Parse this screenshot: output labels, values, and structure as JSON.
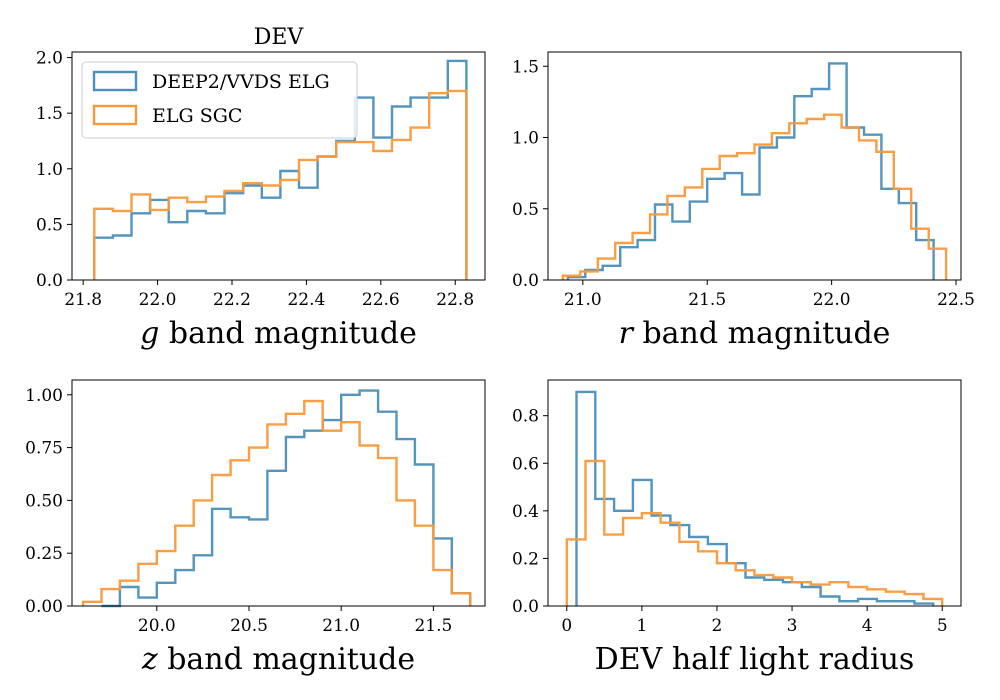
{
  "figure_title": "DEV",
  "colors": {
    "series_a": "#4b8fbb",
    "series_b": "#f9993a"
  },
  "legend": {
    "entries": [
      "DEEP2/VVDS ELG",
      "ELG SGC"
    ],
    "placement": "top-left of first panel"
  },
  "chart_data": [
    {
      "type": "histogram-step",
      "title": "DEV",
      "xlabel": "g band magnitude",
      "xlabel_math": "g",
      "xlabel_rest": " band magnitude",
      "xlim": [
        21.77,
        22.88
      ],
      "ylim": [
        0,
        2.05
      ],
      "xticks": [
        21.8,
        22.0,
        22.2,
        22.4,
        22.6,
        22.8
      ],
      "xtick_labels": [
        "21.8",
        "22.0",
        "22.2",
        "22.4",
        "22.6",
        "22.8"
      ],
      "yticks": [
        0,
        0.5,
        1.0,
        1.5,
        2.0
      ],
      "ytick_labels": [
        "0.0",
        "0.5",
        "1.0",
        "1.5",
        "2.0"
      ],
      "series": [
        {
          "name": "DEEP2/VVDS ELG",
          "edges": [
            21.83,
            21.88,
            21.93,
            21.98,
            22.03,
            22.08,
            22.13,
            22.18,
            22.23,
            22.28,
            22.33,
            22.38,
            22.43,
            22.48,
            22.53,
            22.58,
            22.63,
            22.68,
            22.73,
            22.78,
            22.83
          ],
          "values": [
            0.38,
            0.4,
            0.6,
            0.72,
            0.52,
            0.62,
            0.6,
            0.78,
            0.85,
            0.74,
            0.98,
            0.83,
            1.11,
            1.25,
            1.64,
            1.28,
            1.56,
            1.64,
            1.64,
            1.97
          ]
        },
        {
          "name": "ELG SGC",
          "edges": [
            21.83,
            21.88,
            21.93,
            21.98,
            22.03,
            22.08,
            22.13,
            22.18,
            22.23,
            22.28,
            22.33,
            22.38,
            22.43,
            22.48,
            22.53,
            22.58,
            22.63,
            22.68,
            22.73,
            22.78,
            22.83
          ],
          "values": [
            0.64,
            0.62,
            0.77,
            0.63,
            0.74,
            0.7,
            0.75,
            0.8,
            0.87,
            0.85,
            0.9,
            1.08,
            1.11,
            1.24,
            1.24,
            1.16,
            1.26,
            1.37,
            1.68,
            1.7
          ]
        }
      ]
    },
    {
      "type": "histogram-step",
      "title": "",
      "xlabel": "r band magnitude",
      "xlabel_math": "r",
      "xlabel_rest": " band magnitude",
      "xlim": [
        20.86,
        22.52
      ],
      "ylim": [
        0,
        1.6
      ],
      "xticks": [
        21.0,
        21.5,
        22.0,
        22.5
      ],
      "xtick_labels": [
        "21.0",
        "21.5",
        "22.0",
        "22.5"
      ],
      "yticks": [
        0,
        0.5,
        1.0,
        1.5
      ],
      "ytick_labels": [
        "0.0",
        "0.5",
        "1.0",
        "1.5"
      ],
      "series": [
        {
          "name": "DEEP2/VVDS ELG",
          "edges": [
            20.94,
            21.01,
            21.08,
            21.15,
            21.22,
            21.29,
            21.36,
            21.43,
            21.5,
            21.57,
            21.64,
            21.71,
            21.78,
            21.85,
            21.92,
            21.99,
            22.06,
            22.13,
            22.2,
            22.27,
            22.34,
            22.41
          ],
          "values": [
            0.02,
            0.07,
            0.1,
            0.23,
            0.28,
            0.53,
            0.41,
            0.55,
            0.71,
            0.75,
            0.6,
            0.93,
            1.0,
            1.29,
            1.34,
            1.52,
            1.07,
            1.02,
            0.64,
            0.54,
            0.28
          ]
        },
        {
          "name": "ELG SGC",
          "edges": [
            20.92,
            20.99,
            21.06,
            21.13,
            21.2,
            21.27,
            21.34,
            21.41,
            21.48,
            21.55,
            21.62,
            21.69,
            21.76,
            21.83,
            21.9,
            21.97,
            22.04,
            22.11,
            22.18,
            22.25,
            22.32,
            22.39,
            22.46
          ],
          "values": [
            0.03,
            0.06,
            0.15,
            0.26,
            0.33,
            0.46,
            0.59,
            0.65,
            0.78,
            0.87,
            0.89,
            0.95,
            1.03,
            1.1,
            1.13,
            1.16,
            1.07,
            0.98,
            0.9,
            0.64,
            0.36,
            0.22
          ]
        }
      ]
    },
    {
      "type": "histogram-step",
      "title": "",
      "xlabel": "z band magnitude",
      "xlabel_math": "z",
      "xlabel_rest": " band magnitude",
      "xlim": [
        19.54,
        21.78
      ],
      "ylim": [
        0,
        1.07
      ],
      "xticks": [
        20.0,
        20.5,
        21.0,
        21.5
      ],
      "xtick_labels": [
        "20.0",
        "20.5",
        "21.0",
        "21.5"
      ],
      "yticks": [
        0,
        0.25,
        0.5,
        0.75,
        1.0
      ],
      "ytick_labels": [
        "0.00",
        "0.25",
        "0.50",
        "0.75",
        "1.00"
      ],
      "series": [
        {
          "name": "DEEP2/VVDS ELG",
          "edges": [
            19.7,
            19.8,
            19.9,
            20.0,
            20.1,
            20.2,
            20.3,
            20.4,
            20.5,
            20.6,
            20.7,
            20.8,
            20.9,
            21.0,
            21.1,
            21.2,
            21.3,
            21.4,
            21.5,
            21.6,
            21.7
          ],
          "values": [
            0.0,
            0.09,
            0.04,
            0.11,
            0.17,
            0.24,
            0.46,
            0.42,
            0.41,
            0.64,
            0.8,
            0.83,
            0.88,
            1.0,
            1.02,
            0.92,
            0.79,
            0.67,
            0.32,
            0.06
          ]
        },
        {
          "name": "ELG SGC",
          "edges": [
            19.6,
            19.7,
            19.8,
            19.9,
            20.0,
            20.1,
            20.2,
            20.3,
            20.4,
            20.5,
            20.6,
            20.7,
            20.8,
            20.9,
            21.0,
            21.1,
            21.2,
            21.3,
            21.4,
            21.5,
            21.6,
            21.7
          ],
          "values": [
            0.02,
            0.08,
            0.12,
            0.2,
            0.26,
            0.38,
            0.5,
            0.62,
            0.69,
            0.75,
            0.86,
            0.91,
            0.97,
            0.83,
            0.87,
            0.76,
            0.7,
            0.5,
            0.38,
            0.17,
            0.06
          ]
        }
      ]
    },
    {
      "type": "histogram-step",
      "title": "",
      "xlabel": "DEV half light radius",
      "xlabel_math": "",
      "xlabel_rest": "DEV half light radius",
      "xlim": [
        -0.25,
        5.25
      ],
      "ylim": [
        0,
        0.95
      ],
      "xticks": [
        0,
        1,
        2,
        3,
        4,
        5
      ],
      "xtick_labels": [
        "0",
        "1",
        "2",
        "3",
        "4",
        "5"
      ],
      "yticks": [
        0,
        0.2,
        0.4,
        0.6,
        0.8
      ],
      "ytick_labels": [
        "0.0",
        "0.2",
        "0.4",
        "0.6",
        "0.8"
      ],
      "series": [
        {
          "name": "DEEP2/VVDS ELG",
          "edges": [
            0.13,
            0.38,
            0.63,
            0.88,
            1.13,
            1.38,
            1.63,
            1.88,
            2.13,
            2.38,
            2.63,
            2.88,
            3.13,
            3.38,
            3.63,
            3.88,
            4.13,
            4.38,
            4.63,
            4.88
          ],
          "values": [
            0.9,
            0.45,
            0.4,
            0.53,
            0.38,
            0.34,
            0.29,
            0.26,
            0.18,
            0.12,
            0.11,
            0.1,
            0.08,
            0.04,
            0.02,
            0.03,
            0.02,
            0.02,
            0.01
          ]
        },
        {
          "name": "ELG SGC",
          "edges": [
            0.0,
            0.25,
            0.5,
            0.75,
            1.0,
            1.25,
            1.5,
            1.75,
            2.0,
            2.25,
            2.5,
            2.75,
            3.0,
            3.25,
            3.5,
            3.75,
            4.0,
            4.25,
            4.5,
            4.75,
            5.0
          ],
          "values": [
            0.28,
            0.61,
            0.3,
            0.37,
            0.39,
            0.35,
            0.27,
            0.23,
            0.18,
            0.15,
            0.13,
            0.12,
            0.1,
            0.09,
            0.1,
            0.08,
            0.07,
            0.06,
            0.05,
            0.03
          ]
        }
      ]
    }
  ]
}
